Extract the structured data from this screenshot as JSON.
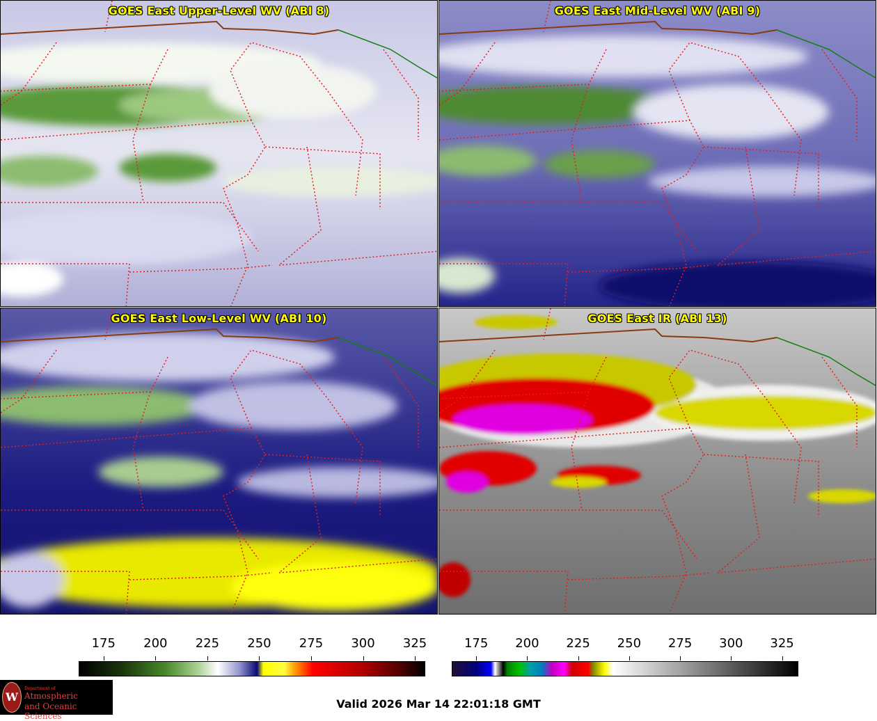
{
  "panels": [
    {
      "title": "GOES East Upper-Level WV (ABI 8)",
      "product": "upper-wv"
    },
    {
      "title": "GOES East Mid-Level WV (ABI 9)",
      "product": "mid-wv"
    },
    {
      "title": "GOES East Low-Level WV (ABI 10)",
      "product": "low-wv"
    },
    {
      "title": "GOES East IR (ABI 13)",
      "product": "ir"
    }
  ],
  "colorbars": {
    "wv": {
      "ticks": [
        "175",
        "200",
        "225",
        "250",
        "275",
        "300",
        "325"
      ],
      "tick_values": [
        175,
        200,
        225,
        250,
        275,
        300,
        325
      ],
      "range": [
        163,
        330
      ],
      "stops": [
        {
          "v": 163,
          "c": "#000000"
        },
        {
          "v": 185,
          "c": "#1c3a0e"
        },
        {
          "v": 205,
          "c": "#4a8a2a"
        },
        {
          "v": 220,
          "c": "#a8d090"
        },
        {
          "v": 230,
          "c": "#ffffff"
        },
        {
          "v": 240,
          "c": "#9a9ad0"
        },
        {
          "v": 249,
          "c": "#0a0a78"
        },
        {
          "v": 252,
          "c": "#ffff00"
        },
        {
          "v": 262,
          "c": "#ffff40"
        },
        {
          "v": 268,
          "c": "#ff9000"
        },
        {
          "v": 276,
          "c": "#ff0000"
        },
        {
          "v": 300,
          "c": "#b00000"
        },
        {
          "v": 318,
          "c": "#500000"
        },
        {
          "v": 330,
          "c": "#000000"
        }
      ]
    },
    "ir": {
      "ticks": [
        "175",
        "200",
        "225",
        "250",
        "275",
        "300",
        "325"
      ],
      "tick_values": [
        175,
        200,
        225,
        250,
        275,
        300,
        325
      ],
      "range": [
        163,
        333
      ],
      "stops": [
        {
          "v": 163,
          "c": "#201030"
        },
        {
          "v": 175,
          "c": "#000080"
        },
        {
          "v": 182,
          "c": "#0000ff"
        },
        {
          "v": 184,
          "c": "#ffffff"
        },
        {
          "v": 188,
          "c": "#000000"
        },
        {
          "v": 190,
          "c": "#008000"
        },
        {
          "v": 196,
          "c": "#00c000"
        },
        {
          "v": 201,
          "c": "#00a0a0"
        },
        {
          "v": 207,
          "c": "#0080c0"
        },
        {
          "v": 212,
          "c": "#c000c0"
        },
        {
          "v": 218,
          "c": "#ff00ff"
        },
        {
          "v": 222,
          "c": "#d00000"
        },
        {
          "v": 230,
          "c": "#ff0000"
        },
        {
          "v": 232,
          "c": "#808000"
        },
        {
          "v": 238,
          "c": "#ffff00"
        },
        {
          "v": 242,
          "c": "#ffffff"
        },
        {
          "v": 333,
          "c": "#000000"
        }
      ]
    }
  },
  "colors": {
    "state_lines": "#e02020",
    "canada_border": "#8b3a10",
    "lake_outline": "#108010",
    "title_text": "#ffff00"
  },
  "valid_time": "Valid 2026 Mar 14 22:01:18 GMT",
  "logo": {
    "seal_letter": "W",
    "dept": "Department of",
    "line1": "Atmospheric",
    "line2": "and Oceanic Sciences"
  }
}
